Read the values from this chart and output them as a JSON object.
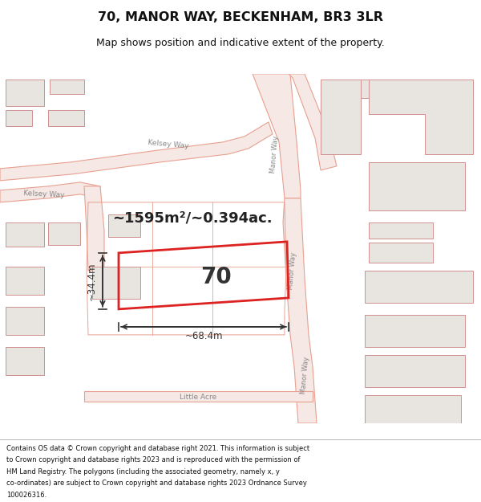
{
  "title": "70, MANOR WAY, BECKENHAM, BR3 3LR",
  "subtitle": "Map shows position and indicative extent of the property.",
  "footer": "Contains OS data © Crown copyright and database right 2021. This information is subject to Crown copyright and database rights 2023 and is reproduced with the permission of HM Land Registry. The polygons (including the associated geometry, namely x, y co-ordinates) are subject to Crown copyright and database rights 2023 Ordnance Survey 100026316.",
  "area_text": "~1595m²/~0.394ac.",
  "width_text": "~68.4m",
  "height_text": "~34.4m",
  "label_70": "70",
  "map_bg": "#ffffff",
  "road_fill": "#f5e8e5",
  "road_stroke": "#e8a090",
  "highlight_color": "#dd2222",
  "building_fill": "#e8e4e0",
  "building_stroke": "#d09090",
  "parcel_stroke": "#e8a090",
  "text_color": "#888888"
}
